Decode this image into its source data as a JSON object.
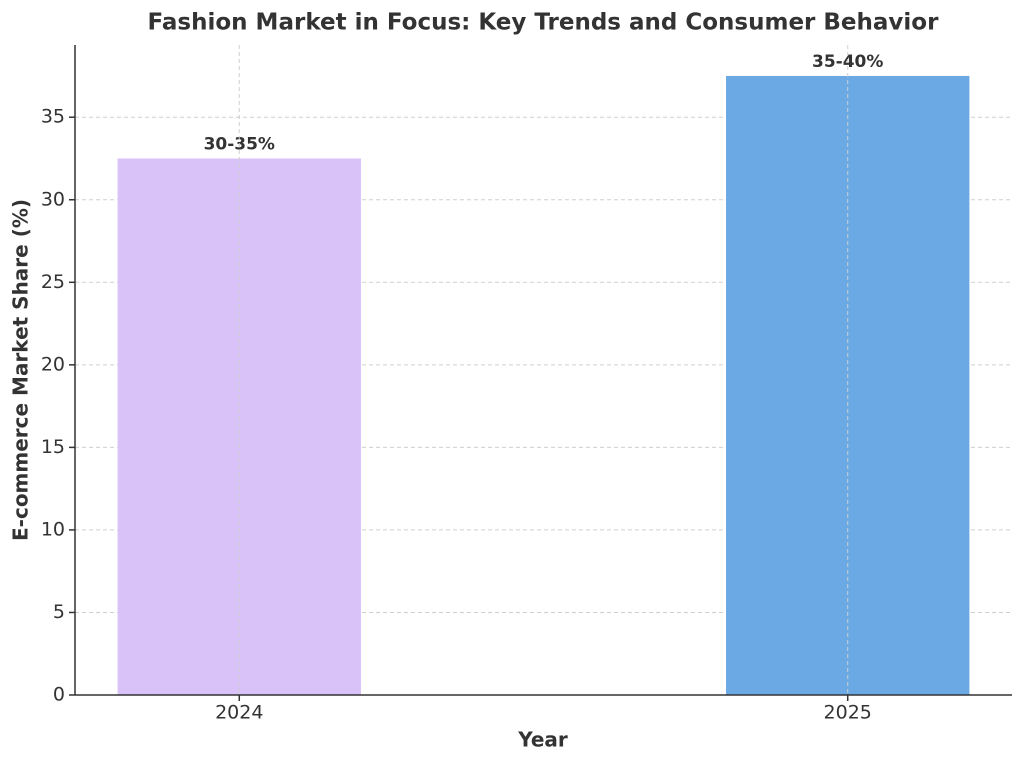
{
  "chart_data": {
    "type": "bar",
    "title": "Fashion Market in Focus: Key Trends and Consumer Behavior",
    "xlabel": "Year",
    "ylabel": "E-commerce Market Share (%)",
    "categories": [
      "2024",
      "2025"
    ],
    "values": [
      32.5,
      37.5
    ],
    "value_labels": [
      "30-35%",
      "35-40%"
    ],
    "colors": [
      "#d9c2f7",
      "#6aa9e3"
    ],
    "ylim": [
      0,
      39.375
    ],
    "yticks": [
      0,
      5,
      10,
      15,
      20,
      25,
      30,
      35
    ],
    "grid": true
  }
}
